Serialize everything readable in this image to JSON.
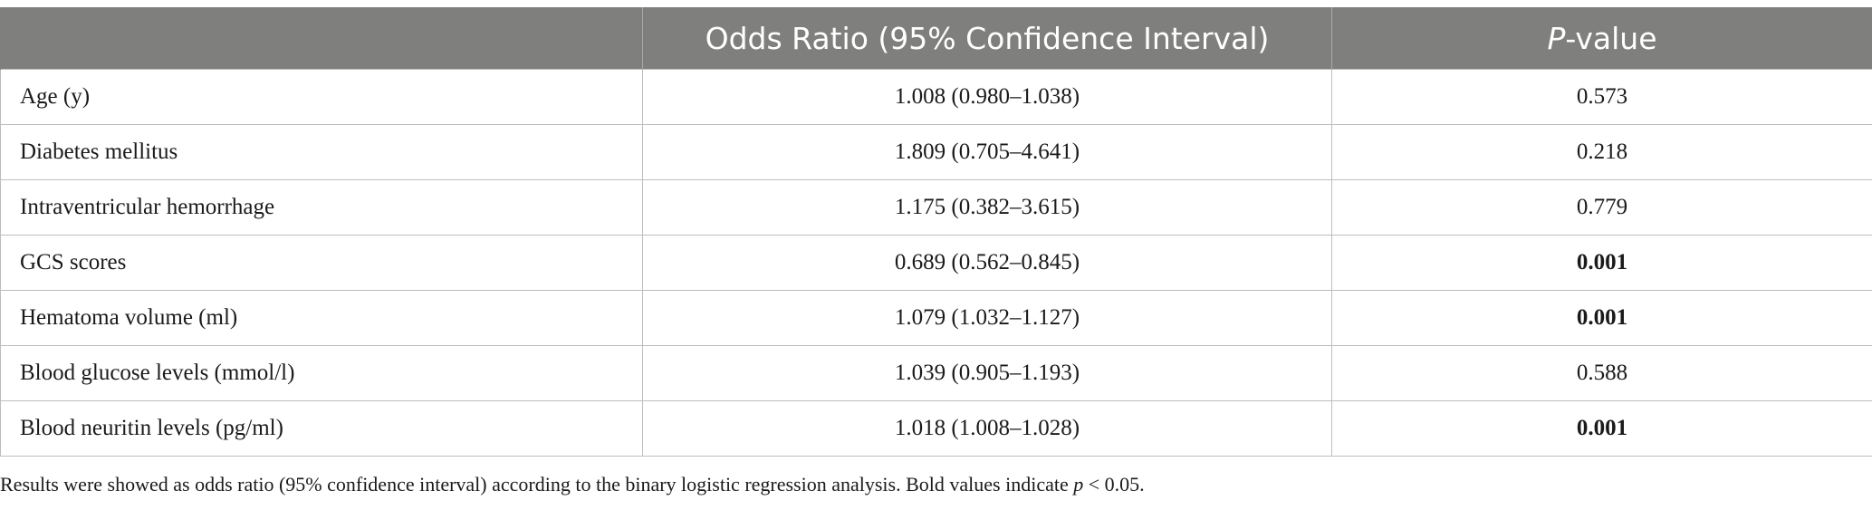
{
  "table": {
    "headers": {
      "col1": "",
      "col2": "Odds Ratio (95% Confidence Interval)",
      "col3_italic": "P",
      "col3_rest": "-value"
    },
    "rows": [
      {
        "label": "Age (y)",
        "or": "1.008 (0.980–1.038)",
        "p": "0.573",
        "bold": false
      },
      {
        "label": "Diabetes mellitus",
        "or": "1.809 (0.705–4.641)",
        "p": "0.218",
        "bold": false
      },
      {
        "label": "Intraventricular hemorrhage",
        "or": "1.175 (0.382–3.615)",
        "p": "0.779",
        "bold": false
      },
      {
        "label": "GCS scores",
        "or": "0.689 (0.562–0.845)",
        "p": "0.001",
        "bold": true
      },
      {
        "label": "Hematoma volume (ml)",
        "or": "1.079 (1.032–1.127)",
        "p": "0.001",
        "bold": true
      },
      {
        "label": "Blood glucose levels (mmol/l)",
        "or": "1.039 (0.905–1.193)",
        "p": "0.588",
        "bold": false
      },
      {
        "label": "Blood neuritin levels (pg/ml)",
        "or": "1.018 (1.008–1.028)",
        "p": "0.001",
        "bold": true
      }
    ]
  },
  "footnote": {
    "text_before": "Results were showed as odds ratio (95% confidence interval) according to the binary logistic regression analysis. Bold values indicate ",
    "italic": "p",
    "text_after": " < 0.05."
  }
}
